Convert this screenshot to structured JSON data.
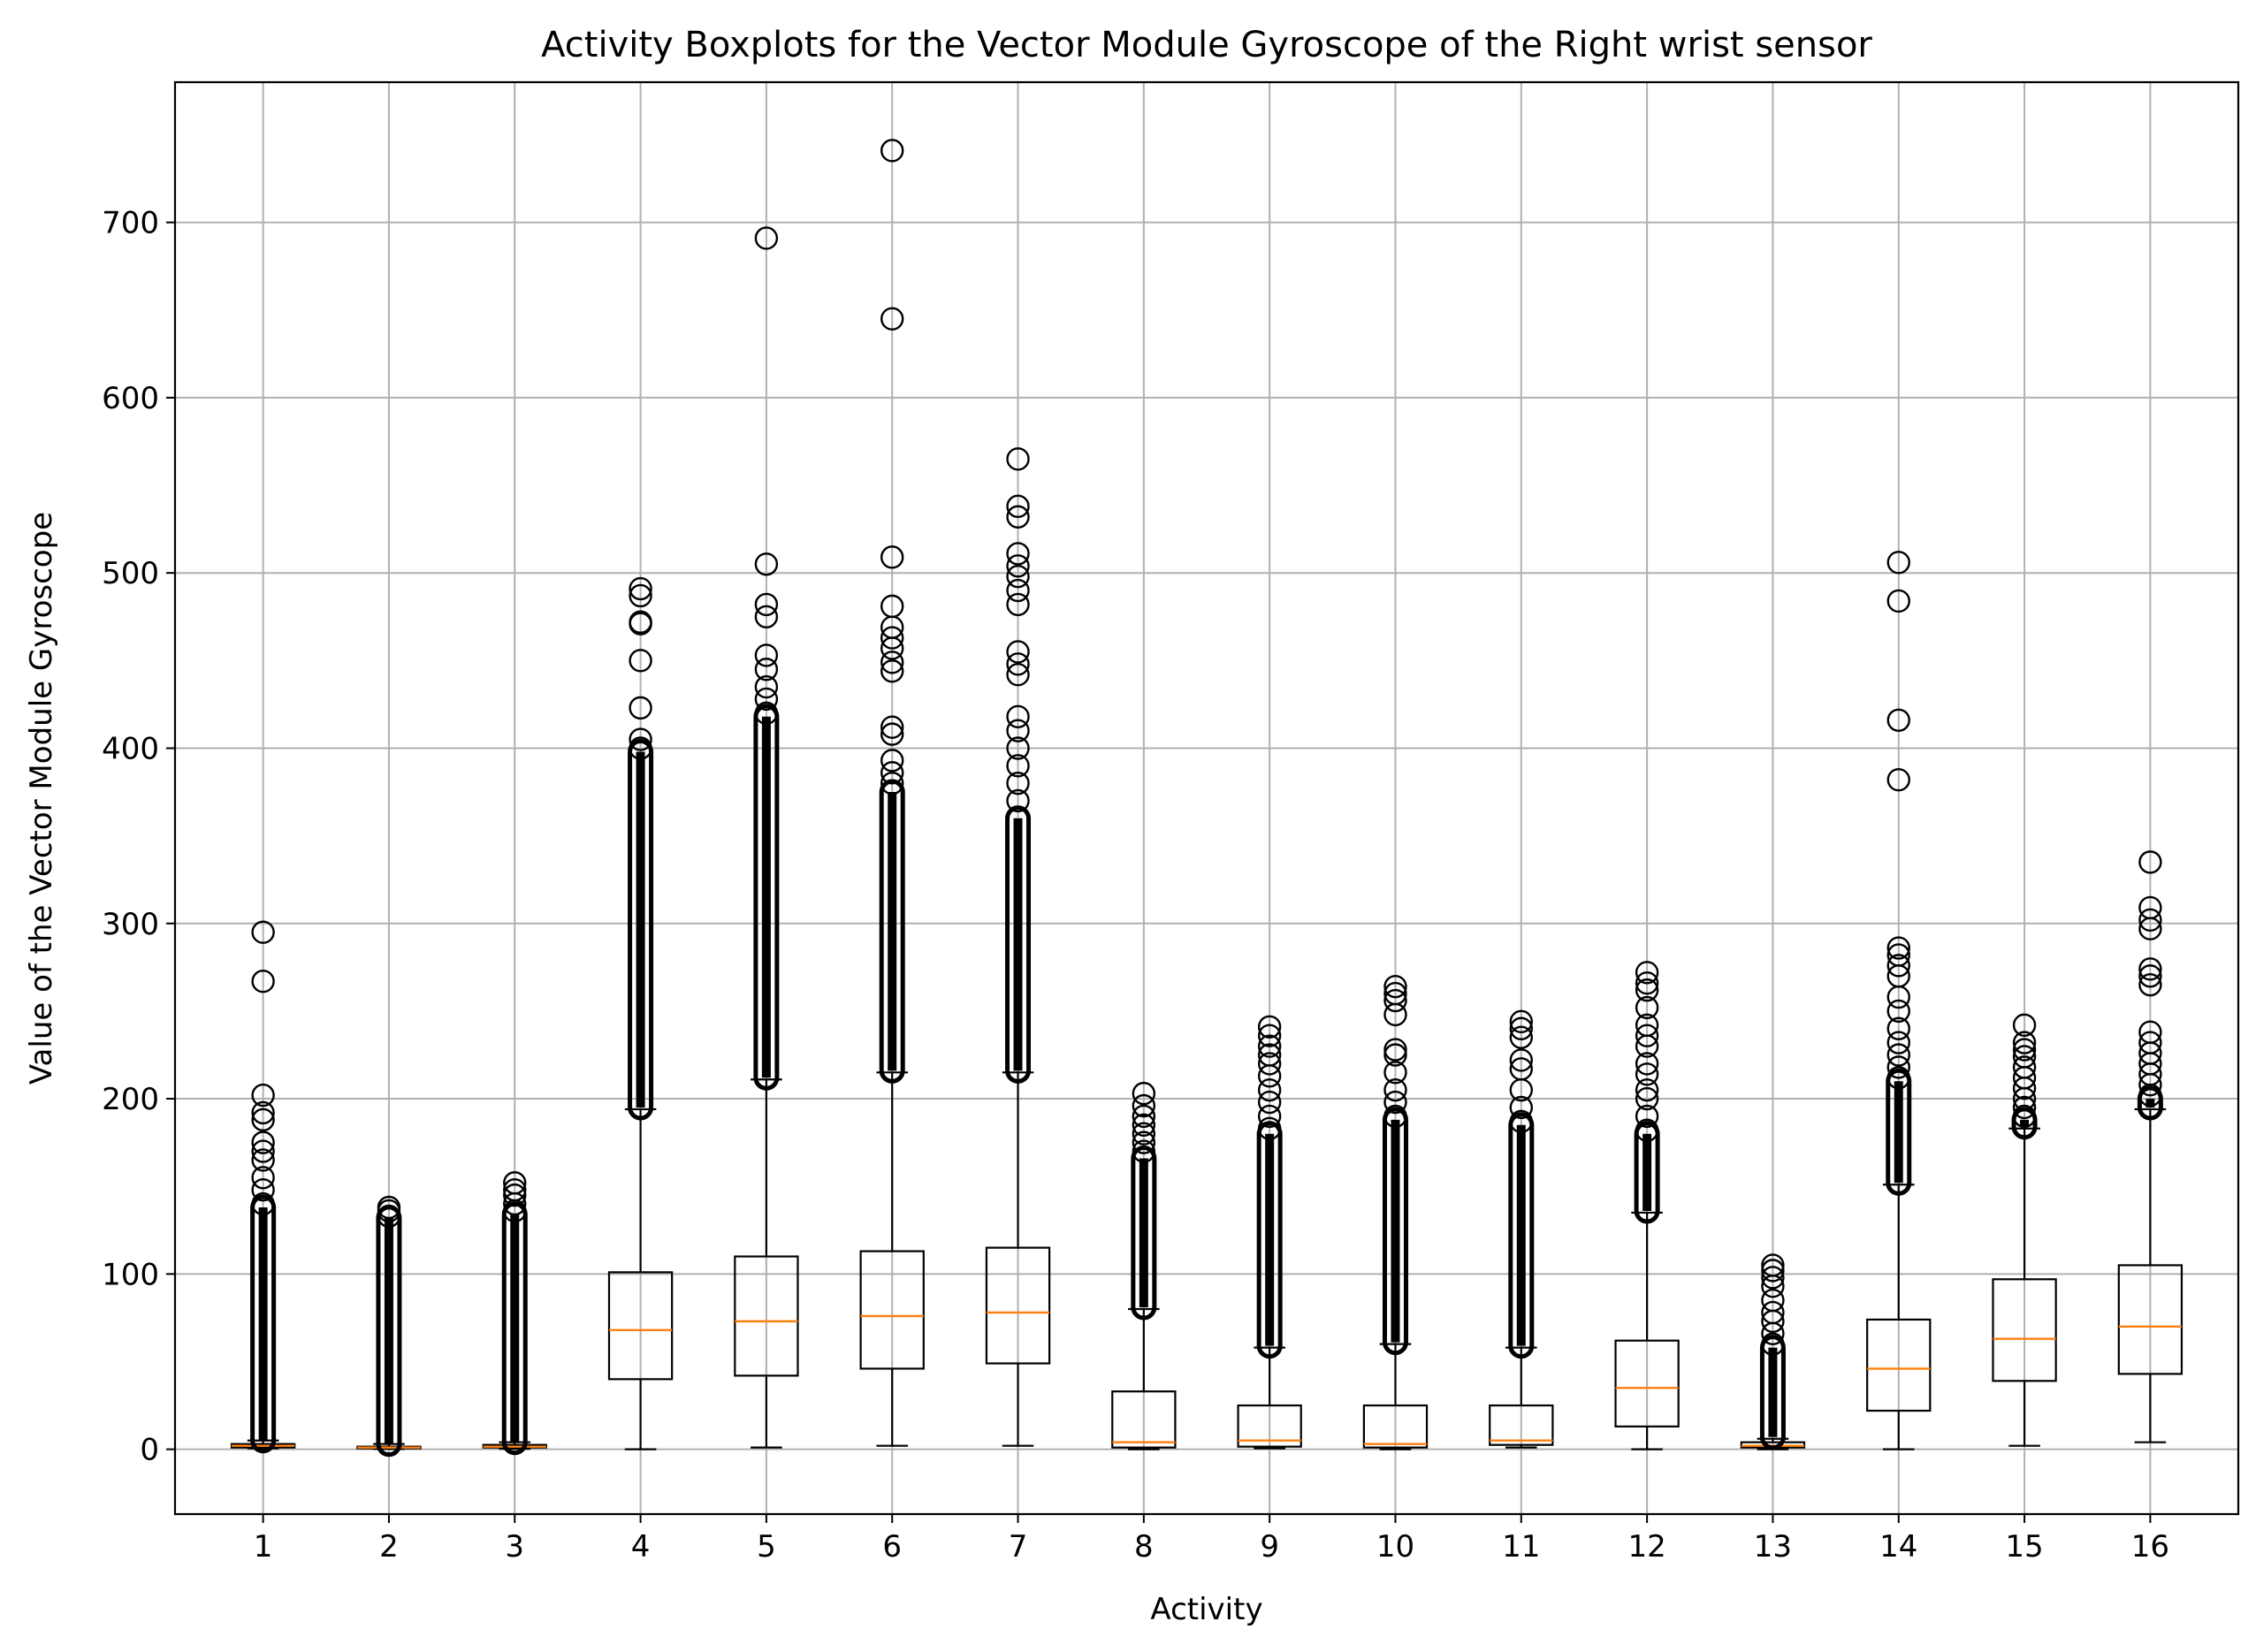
{
  "chart_data": {
    "type": "boxplot",
    "title": "Activity Boxplots for the Vector Module Gyroscope of the Right wrist sensor",
    "xlabel": "Activity",
    "ylabel": "Value of the Vector Module Gyroscope",
    "ylim": [
      -37,
      780
    ],
    "yticks": [
      0,
      100,
      200,
      300,
      400,
      500,
      600,
      700
    ],
    "grid": true,
    "colors": {
      "box": "#000000",
      "median": "#ff7f0e",
      "grid": "#b0b0b0"
    },
    "categories": [
      "1",
      "2",
      "3",
      "4",
      "5",
      "6",
      "7",
      "8",
      "9",
      "10",
      "11",
      "12",
      "13",
      "14",
      "15",
      "16"
    ],
    "boxes": [
      {
        "whisker_low": 0.5,
        "q1": 1,
        "median": 2,
        "q3": 3,
        "whisker_high": 5,
        "fliers": [
          295,
          267,
          202,
          192,
          188,
          175,
          170,
          165,
          155,
          148,
          140
        ],
        "flier_band": [
          5,
          138
        ]
      },
      {
        "whisker_low": 0.2,
        "q1": 0.5,
        "median": 1,
        "q3": 1.5,
        "whisker_high": 3,
        "fliers": [
          138,
          136,
          133
        ],
        "flier_band": [
          3,
          132
        ]
      },
      {
        "whisker_low": 0.3,
        "q1": 1,
        "median": 1.5,
        "q3": 2.5,
        "whisker_high": 4,
        "fliers": [
          152,
          148,
          145,
          140,
          136
        ],
        "flier_band": [
          4,
          134
        ]
      },
      {
        "whisker_low": 0,
        "q1": 40,
        "median": 68,
        "q3": 101,
        "whisker_high": 194,
        "fliers": [
          491,
          487,
          472,
          471,
          450,
          423,
          405,
          400
        ],
        "flier_band": [
          195,
          398
        ]
      },
      {
        "whisker_low": 1,
        "q1": 42,
        "median": 73,
        "q3": 110,
        "whisker_high": 211,
        "fliers": [
          691,
          505,
          482,
          475,
          453,
          445,
          435,
          428,
          420
        ],
        "flier_band": [
          212,
          418
        ]
      },
      {
        "whisker_low": 2,
        "q1": 46,
        "median": 76,
        "q3": 113,
        "whisker_high": 215,
        "fliers": [
          741,
          645,
          509,
          481,
          469,
          463,
          457,
          449,
          444,
          412,
          408,
          393,
          386,
          380
        ],
        "flier_band": [
          216,
          375
        ]
      },
      {
        "whisker_low": 2,
        "q1": 49,
        "median": 78,
        "q3": 115,
        "whisker_high": 215,
        "fliers": [
          565,
          538,
          532,
          511,
          504,
          498,
          490,
          482,
          455,
          448,
          442,
          418,
          410,
          400,
          390,
          380,
          370
        ],
        "flier_band": [
          216,
          360
        ]
      },
      {
        "whisker_low": 0,
        "q1": 1,
        "median": 4,
        "q3": 33,
        "whisker_high": 80,
        "fliers": [
          203,
          196,
          190,
          185,
          180,
          175,
          170
        ],
        "flier_band": [
          81,
          166
        ]
      },
      {
        "whisker_low": 0.5,
        "q1": 1.5,
        "median": 5,
        "q3": 25,
        "whisker_high": 58,
        "fliers": [
          241,
          236,
          230,
          225,
          220,
          213,
          205,
          198,
          190,
          183
        ],
        "flier_band": [
          59,
          180
        ]
      },
      {
        "whisker_low": 0,
        "q1": 1,
        "median": 3,
        "q3": 25,
        "whisker_high": 60,
        "fliers": [
          264,
          260,
          256,
          248,
          228,
          225,
          215,
          205,
          198,
          190
        ],
        "flier_band": [
          61,
          188
        ]
      },
      {
        "whisker_low": 1,
        "q1": 2.5,
        "median": 5,
        "q3": 25,
        "whisker_high": 58,
        "fliers": [
          244,
          240,
          235,
          222,
          217,
          205,
          195,
          187
        ],
        "flier_band": [
          59,
          185
        ]
      },
      {
        "whisker_low": 0,
        "q1": 13,
        "median": 35,
        "q3": 62,
        "whisker_high": 135,
        "fliers": [
          272,
          266,
          262,
          252,
          242,
          236,
          230,
          220,
          214,
          205,
          200,
          190,
          182
        ],
        "flier_band": [
          136,
          180
        ]
      },
      {
        "whisker_low": 0,
        "q1": 1,
        "median": 2,
        "q3": 4,
        "whisker_high": 6,
        "fliers": [
          105,
          102,
          98,
          93,
          85,
          78,
          73,
          66,
          60
        ],
        "flier_band": [
          7,
          58
        ]
      },
      {
        "whisker_low": 0,
        "q1": 22,
        "median": 46,
        "q3": 74,
        "whisker_high": 151,
        "fliers": [
          506,
          484,
          416,
          382,
          286,
          282,
          276,
          270,
          258,
          250,
          240,
          232,
          225,
          218,
          212
        ],
        "flier_band": [
          152,
          210
        ]
      },
      {
        "whisker_low": 2,
        "q1": 39,
        "median": 63,
        "q3": 97,
        "whisker_high": 183,
        "fliers": [
          242,
          232,
          228,
          224,
          218,
          212,
          206,
          200,
          195,
          190
        ],
        "flier_band": [
          184,
          188
        ]
      },
      {
        "whisker_low": 4,
        "q1": 43,
        "median": 70,
        "q3": 105,
        "whisker_high": 194,
        "fliers": [
          335,
          309,
          302,
          297,
          274,
          270,
          265,
          238,
          232,
          226,
          220,
          214,
          208,
          202
        ],
        "flier_band": [
          195,
          200
        ]
      }
    ]
  }
}
